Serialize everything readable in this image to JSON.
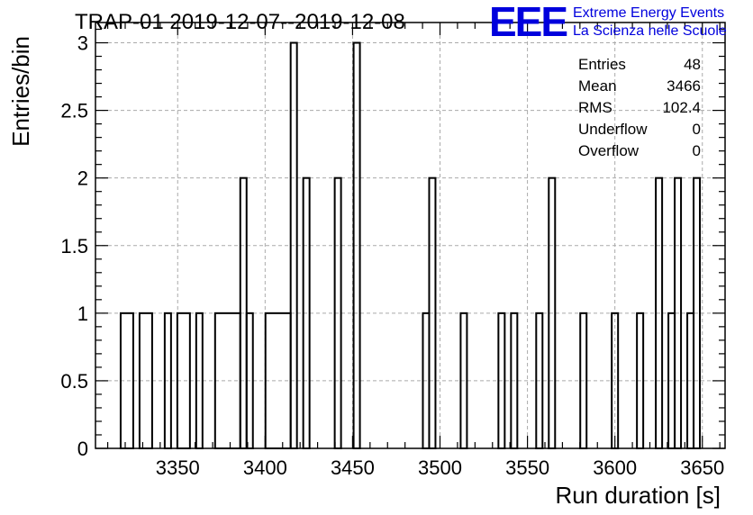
{
  "chart_data": {
    "type": "histogram",
    "title": "TRAP-01 2019-12-07--2019-12-08",
    "xlabel": "Run duration [s]",
    "ylabel": "Entries/bin",
    "xlim": [
      3303,
      3663
    ],
    "ylim": [
      0,
      3.15
    ],
    "bin_width": 3.6,
    "grid": true,
    "x_ticks": [
      3350,
      3400,
      3450,
      3500,
      3550,
      3600,
      3650
    ],
    "y_ticks": [
      0,
      0.5,
      1,
      1.5,
      2,
      2.5,
      3
    ],
    "bins": [
      {
        "start": 3317.4,
        "end": 3324.6,
        "value": 1
      },
      {
        "start": 3328.2,
        "end": 3335.4,
        "value": 1
      },
      {
        "start": 3342.6,
        "end": 3346.2,
        "value": 1
      },
      {
        "start": 3349.8,
        "end": 3357.0,
        "value": 1
      },
      {
        "start": 3360.6,
        "end": 3364.2,
        "value": 1
      },
      {
        "start": 3371.4,
        "end": 3385.8,
        "value": 1
      },
      {
        "start": 3385.8,
        "end": 3389.4,
        "value": 2
      },
      {
        "start": 3389.4,
        "end": 3393.0,
        "value": 1
      },
      {
        "start": 3400.2,
        "end": 3414.6,
        "value": 1
      },
      {
        "start": 3414.6,
        "end": 3418.2,
        "value": 3
      },
      {
        "start": 3421.8,
        "end": 3425.4,
        "value": 2
      },
      {
        "start": 3439.8,
        "end": 3443.4,
        "value": 2
      },
      {
        "start": 3450.6,
        "end": 3454.2,
        "value": 3
      },
      {
        "start": 3490.2,
        "end": 3493.8,
        "value": 1
      },
      {
        "start": 3493.8,
        "end": 3497.4,
        "value": 2
      },
      {
        "start": 3511.8,
        "end": 3515.4,
        "value": 1
      },
      {
        "start": 3533.4,
        "end": 3537.0,
        "value": 1
      },
      {
        "start": 3540.6,
        "end": 3544.2,
        "value": 1
      },
      {
        "start": 3555.0,
        "end": 3558.6,
        "value": 1
      },
      {
        "start": 3562.2,
        "end": 3565.8,
        "value": 2
      },
      {
        "start": 3580.2,
        "end": 3583.8,
        "value": 1
      },
      {
        "start": 3598.2,
        "end": 3601.8,
        "value": 1
      },
      {
        "start": 3612.6,
        "end": 3616.2,
        "value": 1
      },
      {
        "start": 3623.4,
        "end": 3627.0,
        "value": 2
      },
      {
        "start": 3630.6,
        "end": 3634.2,
        "value": 1
      },
      {
        "start": 3634.2,
        "end": 3637.8,
        "value": 2
      },
      {
        "start": 3641.4,
        "end": 3645.0,
        "value": 1
      },
      {
        "start": 3645.0,
        "end": 3648.6,
        "value": 2
      }
    ],
    "stats": [
      {
        "label": "Entries",
        "value": "48"
      },
      {
        "label": "Mean",
        "value": "3466"
      },
      {
        "label": "RMS",
        "value": "102.4"
      },
      {
        "label": "Underflow",
        "value": "0"
      },
      {
        "label": "Overflow",
        "value": "0"
      }
    ]
  },
  "logo": {
    "mark": "EEE",
    "line1": "Extreme Energy Events",
    "line2": "La Scienza nelle Scuole",
    "color": "#0000dd"
  }
}
